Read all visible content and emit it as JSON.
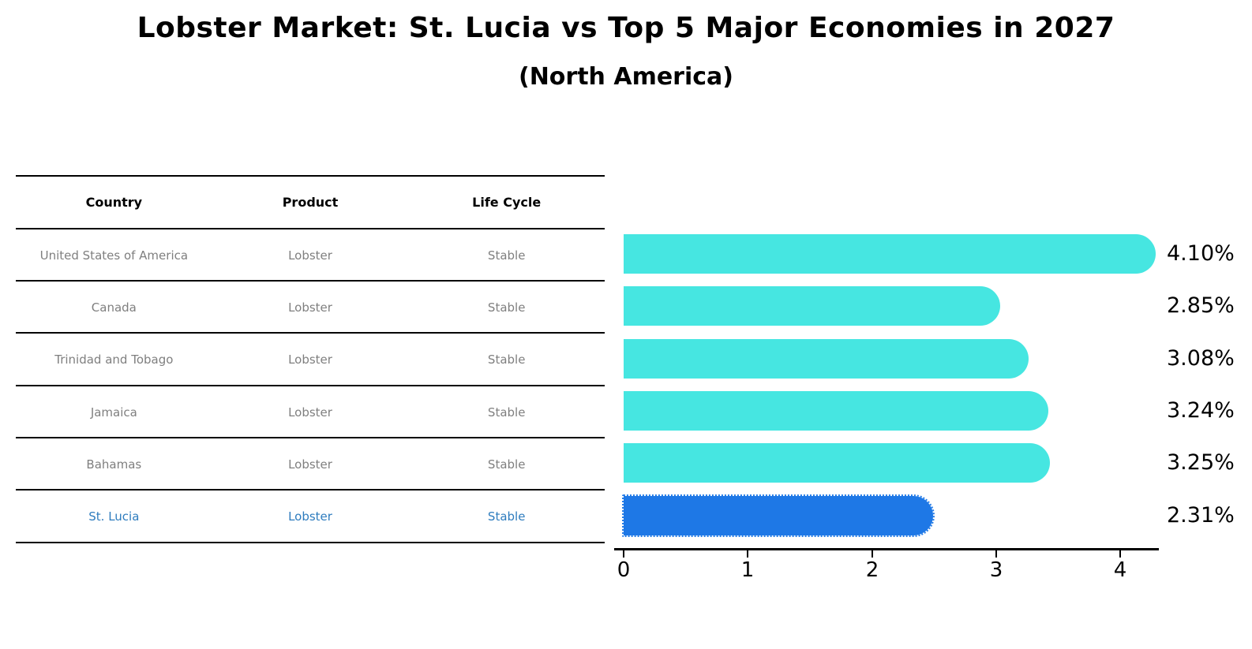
{
  "title": "Lobster Market: St. Lucia vs Top 5 Major Economies in 2027",
  "subtitle": "(North America)",
  "table": {
    "headers": [
      "Country",
      "Product",
      "Life Cycle"
    ],
    "rows": [
      {
        "country": "United States of America",
        "product": "Lobster",
        "life_cycle": "Stable",
        "highlight": false
      },
      {
        "country": "Canada",
        "product": "Lobster",
        "life_cycle": "Stable",
        "highlight": false
      },
      {
        "country": "Trinidad and Tobago",
        "product": "Lobster",
        "life_cycle": "Stable",
        "highlight": false
      },
      {
        "country": "Jamaica",
        "product": "Lobster",
        "life_cycle": "Stable",
        "highlight": false
      },
      {
        "country": "Bahamas",
        "product": "Lobster",
        "life_cycle": "Stable",
        "highlight": false
      },
      {
        "country": "St. Lucia",
        "product": "Lobster",
        "life_cycle": "Stable",
        "highlight": true
      }
    ]
  },
  "chart_data": {
    "type": "bar",
    "orientation": "horizontal",
    "title": "Lobster Market: St. Lucia vs Top 5 Major Economies in 2027",
    "subtitle": "(North America)",
    "categories": [
      "United States of America",
      "Canada",
      "Trinidad and Tobago",
      "Jamaica",
      "Bahamas",
      "St. Lucia"
    ],
    "values": [
      4.1,
      2.85,
      3.08,
      3.24,
      3.25,
      2.31
    ],
    "labels": [
      "4.10%",
      "2.85%",
      "3.08%",
      "3.24%",
      "3.25%",
      "2.31%"
    ],
    "x_ticks": [
      0,
      1,
      2,
      3,
      4
    ],
    "xlim": [
      0,
      4.3
    ],
    "grid": false,
    "legend": "none",
    "highlight_index": 5
  },
  "colors": {
    "bar": "#46E6E1",
    "highlight_bar": "#1E78E6",
    "highlight_text": "#2E7CBE",
    "row_text": "#7f7f7f",
    "axis": "#000000"
  }
}
